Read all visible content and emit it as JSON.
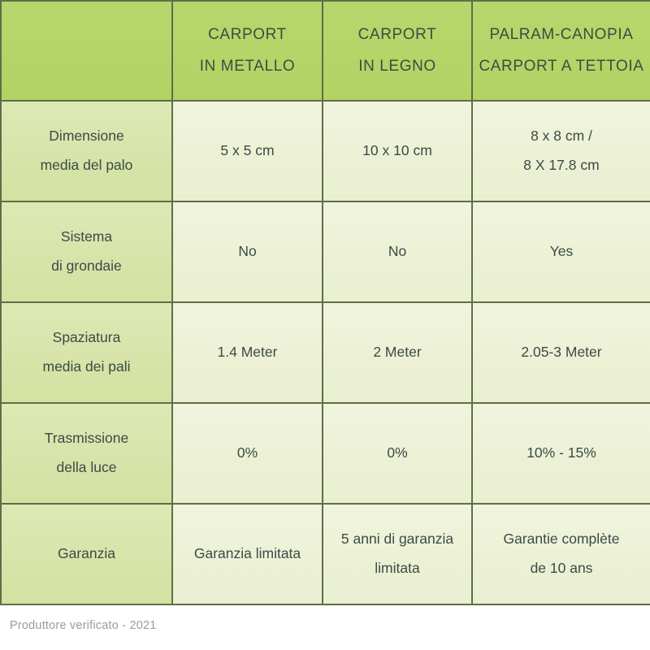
{
  "colors": {
    "header_bg": "#b4d569",
    "label_column_bg": "#d8e4ab",
    "value_cell_bg": "#edf2d7",
    "border": "#5d6f47",
    "text": "#3c4a46",
    "footer_text": "#9b9b9b"
  },
  "header": {
    "corner": "",
    "columns": [
      "CARPORT\nIN METALLO",
      "CARPORT\nIN LEGNO",
      "PALRAM-CANOPIA\nCARPORT A TETTOIA"
    ]
  },
  "rows": [
    {
      "label": "Dimensione\nmedia del palo",
      "values": [
        "5 x 5 cm",
        "10 x 10 cm",
        "8 x 8 cm /\n8 X 17.8 cm"
      ]
    },
    {
      "label": "Sistema\ndi grondaie",
      "values": [
        "No",
        "No",
        "Yes"
      ]
    },
    {
      "label": "Spaziatura\nmedia dei pali",
      "values": [
        "1.4 Meter",
        "2 Meter",
        "2.05-3 Meter"
      ]
    },
    {
      "label": "Trasmissione\ndella luce",
      "values": [
        "0%",
        "0%",
        "10% - 15%"
      ]
    },
    {
      "label": "Garanzia",
      "values": [
        "Garanzia limitata",
        "5 anni di garanzia\nlimitata",
        "Garantie complète\nde 10 ans"
      ]
    }
  ],
  "footer": {
    "text": "Produttore verificato - 2021"
  }
}
